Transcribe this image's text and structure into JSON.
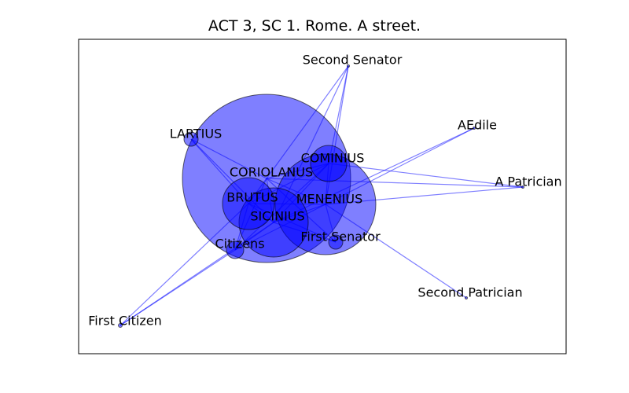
{
  "title": "ACT 3, SC 1. Rome. A street.",
  "colors": {
    "node_fill": "#0000ff",
    "node_fill_opacity": 0.5,
    "edge": "#0000ff",
    "frame": "#000000"
  },
  "nodes": [
    {
      "id": "coriolanus",
      "label": "CORIOLANUS",
      "size": 107
    },
    {
      "id": "menenius",
      "label": "MENENIUS",
      "size": 64
    },
    {
      "id": "sicinius",
      "label": "SICINIUS",
      "size": 44
    },
    {
      "id": "brutus",
      "label": "BRUTUS",
      "size": 33
    },
    {
      "id": "cominius",
      "label": "COMINIUS",
      "size": 23
    },
    {
      "id": "lartius",
      "label": "LARTIUS",
      "size": 9
    },
    {
      "id": "citizens",
      "label": "Citizens",
      "size": 11
    },
    {
      "id": "first_senator",
      "label": "First Senator",
      "size": 9
    },
    {
      "id": "second_senator",
      "label": "Second Senator",
      "size": 1.5
    },
    {
      "id": "aedile",
      "label": "AEdile",
      "size": 1.5
    },
    {
      "id": "a_patrician",
      "label": "A Patrician",
      "size": 1.5
    },
    {
      "id": "second_patrician",
      "label": "Second Patrician",
      "size": 1.5
    },
    {
      "id": "first_citizen",
      "label": "First Citizen",
      "size": 2.5
    }
  ],
  "edges": [
    [
      "coriolanus",
      "menenius"
    ],
    [
      "coriolanus",
      "sicinius"
    ],
    [
      "coriolanus",
      "brutus"
    ],
    [
      "coriolanus",
      "cominius"
    ],
    [
      "coriolanus",
      "lartius"
    ],
    [
      "coriolanus",
      "citizens"
    ],
    [
      "coriolanus",
      "first_senator"
    ],
    [
      "coriolanus",
      "second_senator"
    ],
    [
      "coriolanus",
      "a_patrician"
    ],
    [
      "menenius",
      "sicinius"
    ],
    [
      "menenius",
      "brutus"
    ],
    [
      "menenius",
      "cominius"
    ],
    [
      "menenius",
      "citizens"
    ],
    [
      "menenius",
      "first_senator"
    ],
    [
      "menenius",
      "a_patrician"
    ],
    [
      "menenius",
      "second_patrician"
    ],
    [
      "menenius",
      "aedile"
    ],
    [
      "menenius",
      "second_senator"
    ],
    [
      "sicinius",
      "brutus"
    ],
    [
      "sicinius",
      "cominius"
    ],
    [
      "sicinius",
      "citizens"
    ],
    [
      "sicinius",
      "first_senator"
    ],
    [
      "sicinius",
      "aedile"
    ],
    [
      "sicinius",
      "lartius"
    ],
    [
      "sicinius",
      "first_citizen"
    ],
    [
      "sicinius",
      "second_senator"
    ],
    [
      "brutus",
      "cominius"
    ],
    [
      "brutus",
      "citizens"
    ],
    [
      "brutus",
      "first_citizen"
    ],
    [
      "brutus",
      "lartius"
    ],
    [
      "brutus",
      "first_senator"
    ],
    [
      "cominius",
      "a_patrician"
    ],
    [
      "cominius",
      "citizens"
    ],
    [
      "cominius",
      "second_senator"
    ],
    [
      "citizens",
      "first_citizen"
    ]
  ]
}
